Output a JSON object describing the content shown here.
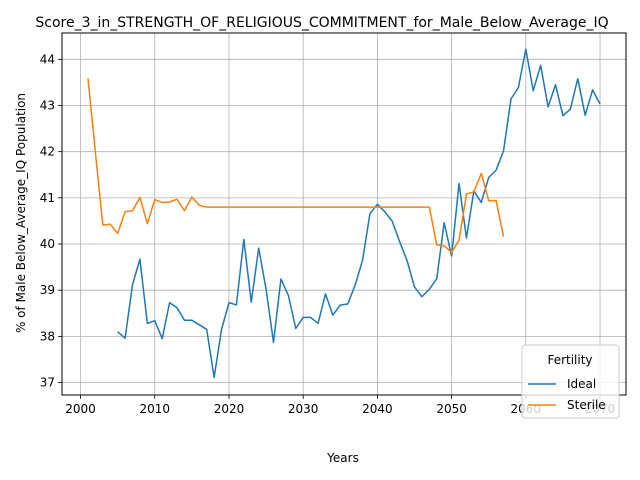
{
  "chart_data": {
    "type": "line",
    "title": "Score_3_in_STRENGTH_OF_RELIGIOUS_COMMITMENT_for_Male_Below_Average_IQ",
    "xlabel": "Years",
    "ylabel": "% of Male Below_Average_IQ Population",
    "xlim": [
      1997.5,
      2073.5
    ],
    "ylim": [
      36.73,
      44.57
    ],
    "xticks": [
      2000,
      2010,
      2020,
      2030,
      2040,
      2050,
      2060,
      2070
    ],
    "yticks": [
      37,
      38,
      39,
      40,
      41,
      42,
      43,
      44
    ],
    "grid": true,
    "legend": {
      "title": "Fertility",
      "position": "lower-right"
    },
    "series": [
      {
        "name": "Ideal",
        "color": "#1f77b4",
        "x": [
          2005,
          2006,
          2007,
          2008,
          2009,
          2010,
          2011,
          2012,
          2013,
          2014,
          2015,
          2016,
          2017,
          2018,
          2019,
          2020,
          2021,
          2022,
          2023,
          2024,
          2025,
          2026,
          2027,
          2028,
          2029,
          2030,
          2031,
          2032,
          2033,
          2034,
          2035,
          2036,
          2037,
          2038,
          2039,
          2040,
          2041,
          2042,
          2043,
          2044,
          2045,
          2046,
          2047,
          2048,
          2049,
          2050,
          2051,
          2052,
          2053,
          2054,
          2055,
          2056,
          2057,
          2058,
          2059,
          2060,
          2061,
          2062,
          2063,
          2064,
          2065,
          2066,
          2067,
          2068,
          2069,
          2070
        ],
        "y": [
          38.1,
          37.96,
          39.12,
          39.67,
          38.28,
          38.34,
          37.95,
          38.73,
          38.62,
          38.35,
          38.35,
          38.25,
          38.15,
          37.11,
          38.15,
          38.73,
          38.68,
          40.1,
          38.74,
          39.91,
          39.02,
          37.87,
          39.24,
          38.89,
          38.17,
          38.41,
          38.41,
          38.28,
          38.92,
          38.46,
          38.68,
          38.7,
          39.11,
          39.65,
          40.66,
          40.86,
          40.7,
          40.49,
          40.05,
          39.64,
          39.07,
          38.86,
          39.02,
          39.25,
          40.46,
          39.74,
          41.31,
          40.13,
          41.15,
          40.9,
          41.44,
          41.6,
          42.02,
          43.14,
          43.39,
          44.22,
          43.32,
          43.87,
          42.97,
          43.45,
          42.78,
          42.92,
          43.58,
          42.79,
          43.34,
          43.03
        ]
      },
      {
        "name": "Sterile",
        "color": "#ff7f0e",
        "x": [
          2001,
          2002,
          2003,
          2004,
          2005,
          2006,
          2007,
          2008,
          2009,
          2010,
          2011,
          2012,
          2013,
          2014,
          2015,
          2016,
          2017,
          2018,
          2019,
          2020,
          2021,
          2022,
          2023,
          2024,
          2025,
          2026,
          2027,
          2028,
          2029,
          2030,
          2031,
          2032,
          2033,
          2034,
          2035,
          2036,
          2037,
          2038,
          2039,
          2040,
          2041,
          2042,
          2043,
          2044,
          2045,
          2046,
          2047,
          2048,
          2049,
          2050,
          2051,
          2052,
          2053,
          2054,
          2055,
          2056,
          2057
        ],
        "y": [
          43.59,
          41.98,
          40.41,
          40.43,
          40.23,
          40.7,
          40.72,
          41.01,
          40.44,
          40.96,
          40.9,
          40.91,
          40.97,
          40.72,
          41.02,
          40.84,
          40.8,
          40.8,
          40.8,
          40.8,
          40.8,
          40.8,
          40.8,
          40.8,
          40.8,
          40.8,
          40.8,
          40.8,
          40.8,
          40.8,
          40.8,
          40.8,
          40.8,
          40.8,
          40.8,
          40.8,
          40.8,
          40.8,
          40.8,
          40.8,
          40.8,
          40.8,
          40.8,
          40.8,
          40.8,
          40.8,
          40.8,
          39.98,
          39.96,
          39.82,
          40.08,
          41.08,
          41.13,
          41.53,
          40.94,
          40.94,
          40.16
        ]
      }
    ]
  }
}
